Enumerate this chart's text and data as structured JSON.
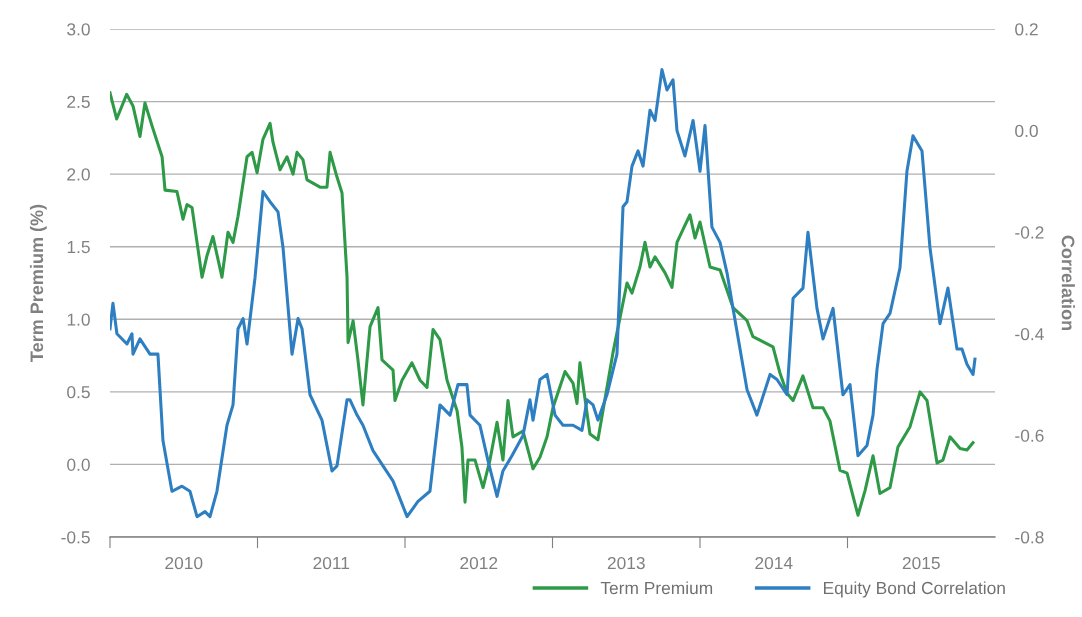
{
  "chart_data": {
    "type": "line",
    "ylabel": "Term Premium (%)",
    "y2label": "Correlation",
    "xlim": [
      2010,
      2016
    ],
    "xticks": [
      {
        "value": 2010,
        "label": null
      },
      {
        "value": 2010.5,
        "label": "2010"
      },
      {
        "value": 2011,
        "label": null
      },
      {
        "value": 2011.5,
        "label": "2011"
      },
      {
        "value": 2012,
        "label": null
      },
      {
        "value": 2012.5,
        "label": "2012"
      },
      {
        "value": 2013,
        "label": null
      },
      {
        "value": 2013.5,
        "label": "2013"
      },
      {
        "value": 2014,
        "label": null
      },
      {
        "value": 2014.5,
        "label": "2014"
      },
      {
        "value": 2015,
        "label": null
      },
      {
        "value": 2015.5,
        "label": "2015"
      }
    ],
    "ylim": [
      -0.5,
      3.0
    ],
    "yticks": [
      {
        "value": -0.5,
        "label": "-0.5"
      },
      {
        "value": 0.0,
        "label": "0.0"
      },
      {
        "value": 0.5,
        "label": "0.5"
      },
      {
        "value": 1.0,
        "label": "1.0"
      },
      {
        "value": 1.5,
        "label": "1.5"
      },
      {
        "value": 2.0,
        "label": "2.0"
      },
      {
        "value": 2.5,
        "label": "2.5"
      },
      {
        "value": 3.0,
        "label": "3.0"
      }
    ],
    "y2lim": [
      -0.8,
      0.2
    ],
    "y2ticks": [
      {
        "value": -0.8,
        "label": "-0.8"
      },
      {
        "value": -0.6,
        "label": "-0.6"
      },
      {
        "value": -0.4,
        "label": "-0.4"
      },
      {
        "value": -0.2,
        "label": "-0.2"
      },
      {
        "value": 0.0,
        "label": "0.0"
      },
      {
        "value": 0.2,
        "label": "0.2"
      }
    ],
    "grid": "y",
    "legend": "bottom right",
    "line_style": "solid",
    "marker": "none",
    "series": [
      {
        "name": "Term Premium",
        "color": "#2e9a48",
        "x": [
          2010.0,
          2010.045,
          2010.113,
          2010.156,
          2010.203,
          2010.237,
          2010.292,
          2010.353,
          2010.373,
          2010.454,
          2010.495,
          2010.522,
          2010.556,
          2010.624,
          2010.658,
          2010.698,
          2010.759,
          2010.8,
          2010.834,
          2010.868,
          2010.929,
          2010.963,
          2010.997,
          2011.037,
          2011.085,
          2011.105,
          2011.153,
          2011.2,
          2011.241,
          2011.268,
          2011.308,
          2011.336,
          2011.424,
          2011.471,
          2011.492,
          2011.539,
          2011.573,
          2011.607,
          2011.614,
          2011.648,
          2011.681,
          2011.715,
          2011.763,
          2011.817,
          2011.844,
          2011.919,
          2011.932,
          2011.98,
          2012.047,
          2012.102,
          2012.149,
          2012.19,
          2012.237,
          2012.285,
          2012.353,
          2012.386,
          2012.407,
          2012.427,
          2012.475,
          2012.529,
          2012.576,
          2012.624,
          2012.664,
          2012.698,
          2012.732,
          2012.8,
          2012.868,
          2012.915,
          2012.963,
          2013.003,
          2013.085,
          2013.139,
          2013.166,
          2013.186,
          2013.254,
          2013.308,
          2013.41,
          2013.505,
          2013.539,
          2013.593,
          2013.627,
          2013.661,
          2013.695,
          2013.763,
          2013.81,
          2013.844,
          2013.885,
          2013.932,
          2013.966,
          2014.0,
          2014.068,
          2014.136,
          2014.224,
          2014.319,
          2014.359,
          2014.495,
          2014.542,
          2014.59,
          2014.631,
          2014.698,
          2014.766,
          2014.834,
          2014.881,
          2014.949,
          2014.997,
          2015.071,
          2015.119,
          2015.173,
          2015.22,
          2015.288,
          2015.342,
          2015.424,
          2015.492,
          2015.539,
          2015.607,
          2015.647,
          2015.695,
          2015.763,
          2015.81,
          2015.851
        ],
        "values": [
          2.56,
          2.38,
          2.55,
          2.47,
          2.26,
          2.49,
          2.31,
          2.12,
          1.89,
          1.88,
          1.69,
          1.79,
          1.77,
          1.29,
          1.44,
          1.57,
          1.29,
          1.6,
          1.53,
          1.71,
          2.12,
          2.15,
          2.01,
          2.24,
          2.35,
          2.22,
          2.03,
          2.12,
          2.0,
          2.15,
          2.1,
          1.96,
          1.91,
          1.91,
          2.15,
          1.98,
          1.87,
          1.29,
          0.84,
          0.99,
          0.72,
          0.41,
          0.95,
          1.08,
          0.72,
          0.65,
          0.44,
          0.58,
          0.7,
          0.58,
          0.53,
          0.93,
          0.86,
          0.58,
          0.37,
          0.12,
          -0.26,
          0.03,
          0.03,
          -0.16,
          0.03,
          0.29,
          0.03,
          0.44,
          0.19,
          0.23,
          -0.03,
          0.05,
          0.19,
          0.39,
          0.64,
          0.56,
          0.42,
          0.7,
          0.21,
          0.17,
          0.77,
          1.25,
          1.18,
          1.36,
          1.53,
          1.36,
          1.43,
          1.32,
          1.22,
          1.53,
          1.62,
          1.72,
          1.56,
          1.67,
          1.36,
          1.34,
          1.08,
          0.99,
          0.88,
          0.81,
          0.63,
          0.49,
          0.44,
          0.61,
          0.39,
          0.39,
          0.3,
          -0.04,
          -0.06,
          -0.35,
          -0.18,
          0.06,
          -0.2,
          -0.16,
          0.12,
          0.26,
          0.5,
          0.44,
          0.01,
          0.03,
          0.19,
          0.11,
          0.1,
          0.15
        ]
      },
      {
        "name": "Equity Bond Correlation",
        "color": "#2e7fc2",
        "axis": "y2",
        "x": [
          2010.0,
          2010.02,
          2010.047,
          2010.115,
          2010.149,
          2010.156,
          2010.203,
          2010.271,
          2010.325,
          2010.359,
          2010.42,
          2010.488,
          2010.542,
          2010.59,
          2010.644,
          2010.678,
          2010.725,
          2010.793,
          2010.834,
          2010.868,
          2010.902,
          2010.929,
          2010.983,
          2011.037,
          2011.085,
          2011.139,
          2011.173,
          2011.234,
          2011.275,
          2011.302,
          2011.356,
          2011.437,
          2011.505,
          2011.539,
          2011.607,
          2011.627,
          2011.675,
          2011.715,
          2011.783,
          2011.919,
          2012.014,
          2012.088,
          2012.169,
          2012.237,
          2012.305,
          2012.359,
          2012.42,
          2012.441,
          2012.508,
          2012.563,
          2012.624,
          2012.664,
          2012.725,
          2012.8,
          2012.847,
          2012.868,
          2012.915,
          2012.963,
          2013.017,
          2013.071,
          2013.139,
          2013.2,
          2013.234,
          2013.275,
          2013.308,
          2013.369,
          2013.437,
          2013.478,
          2013.505,
          2013.539,
          2013.58,
          2013.614,
          2013.661,
          2013.695,
          2013.742,
          2013.776,
          2013.817,
          2013.844,
          2013.898,
          2013.953,
          2014.0,
          2014.034,
          2014.081,
          2014.136,
          2014.183,
          2014.224,
          2014.319,
          2014.386,
          2014.475,
          2014.522,
          2014.59,
          2014.631,
          2014.698,
          2014.732,
          2014.793,
          2014.834,
          2014.902,
          2014.969,
          2015.017,
          2015.071,
          2015.132,
          2015.173,
          2015.2,
          2015.241,
          2015.288,
          2015.356,
          2015.403,
          2015.444,
          2015.505,
          2015.559,
          2015.627,
          2015.681,
          2015.742,
          2015.776,
          2015.81,
          2015.851,
          2015.864
        ],
        "values": [
          -0.39,
          -0.34,
          -0.4,
          -0.42,
          -0.4,
          -0.44,
          -0.41,
          -0.44,
          -0.44,
          -0.61,
          -0.71,
          -0.7,
          -0.71,
          -0.76,
          -0.75,
          -0.76,
          -0.71,
          -0.58,
          -0.54,
          -0.39,
          -0.37,
          -0.42,
          -0.29,
          -0.12,
          -0.14,
          -0.16,
          -0.23,
          -0.44,
          -0.37,
          -0.39,
          -0.52,
          -0.57,
          -0.67,
          -0.66,
          -0.53,
          -0.53,
          -0.56,
          -0.58,
          -0.63,
          -0.69,
          -0.76,
          -0.73,
          -0.71,
          -0.54,
          -0.56,
          -0.5,
          -0.5,
          -0.56,
          -0.58,
          -0.65,
          -0.72,
          -0.67,
          -0.64,
          -0.6,
          -0.53,
          -0.57,
          -0.49,
          -0.48,
          -0.56,
          -0.58,
          -0.58,
          -0.59,
          -0.53,
          -0.54,
          -0.57,
          -0.52,
          -0.44,
          -0.15,
          -0.14,
          -0.07,
          -0.04,
          -0.07,
          0.04,
          0.02,
          0.12,
          0.08,
          0.1,
          0.0,
          -0.05,
          0.02,
          -0.08,
          0.01,
          -0.19,
          -0.22,
          -0.28,
          -0.35,
          -0.51,
          -0.56,
          -0.48,
          -0.49,
          -0.52,
          -0.33,
          -0.31,
          -0.2,
          -0.35,
          -0.41,
          -0.35,
          -0.52,
          -0.5,
          -0.64,
          -0.62,
          -0.56,
          -0.47,
          -0.38,
          -0.36,
          -0.27,
          -0.08,
          -0.01,
          -0.04,
          -0.23,
          -0.38,
          -0.31,
          -0.43,
          -0.43,
          -0.46,
          -0.48,
          -0.45
        ]
      }
    ]
  }
}
